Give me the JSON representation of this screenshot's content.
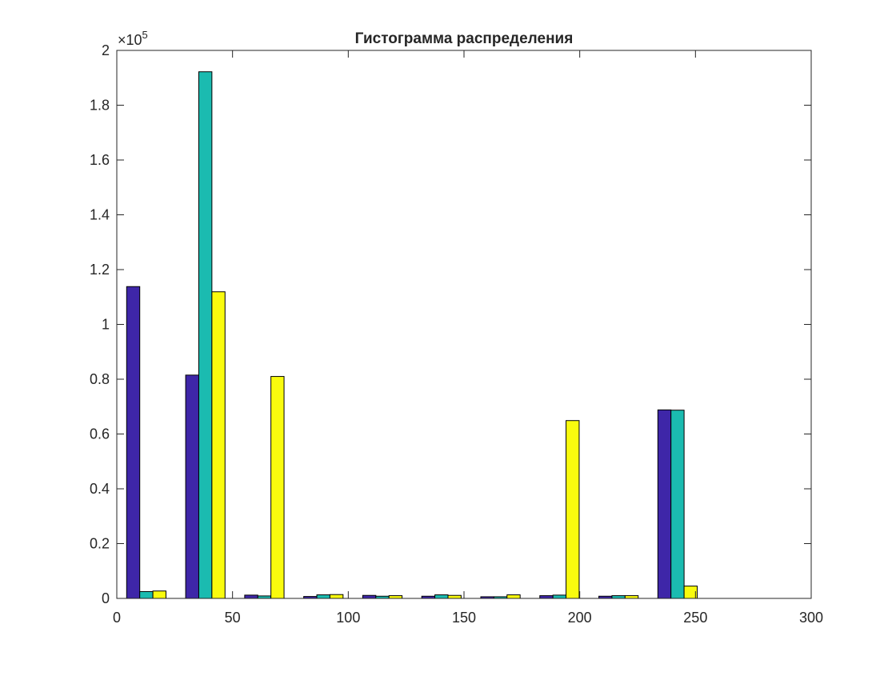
{
  "chart_data": {
    "type": "bar",
    "title": "Гистограмма распределения",
    "xlabel": "",
    "ylabel": "",
    "xlim": [
      0,
      300
    ],
    "ylim": [
      0,
      200000
    ],
    "x_ticks": [
      0,
      50,
      100,
      150,
      200,
      250,
      300
    ],
    "x_tick_labels": [
      "0",
      "50",
      "100",
      "150",
      "200",
      "250",
      "300"
    ],
    "y_ticks": [
      0,
      20000,
      40000,
      60000,
      80000,
      100000,
      120000,
      140000,
      160000,
      180000,
      200000
    ],
    "y_tick_labels": [
      "0",
      "0.2",
      "0.4",
      "0.6",
      "0.8",
      "1",
      "1.2",
      "1.4",
      "1.6",
      "1.8",
      "2"
    ],
    "y_exponent_label": "×10",
    "y_exponent_power": "5",
    "x": [
      12.75,
      38.25,
      63.75,
      89.25,
      114.75,
      140.25,
      165.75,
      191.25,
      216.75,
      242.25
    ],
    "bar_group_width": 17,
    "grid": false,
    "legend": "none",
    "series": [
      {
        "color": "#3e26a8",
        "values": [
          113800,
          81500,
          1200,
          700,
          1100,
          800,
          600,
          1000,
          800,
          68800
        ]
      },
      {
        "color": "#1bbbb0",
        "values": [
          2500,
          192200,
          900,
          1300,
          800,
          1300,
          600,
          1200,
          1000,
          68700
        ]
      },
      {
        "color": "#f9fb0e",
        "values": [
          2700,
          111900,
          81000,
          1400,
          1000,
          1100,
          1300,
          64900,
          1000,
          4500
        ]
      }
    ]
  }
}
